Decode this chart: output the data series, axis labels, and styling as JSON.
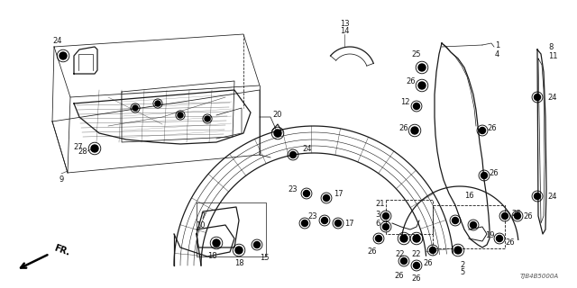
{
  "bg_color": "#ffffff",
  "diagram_code": "TJB4B5000A",
  "fig_width": 6.4,
  "fig_height": 3.2,
  "dpi": 100,
  "line_color": "#1a1a1a",
  "text_color": "#1a1a1a",
  "font_size": 6.0
}
